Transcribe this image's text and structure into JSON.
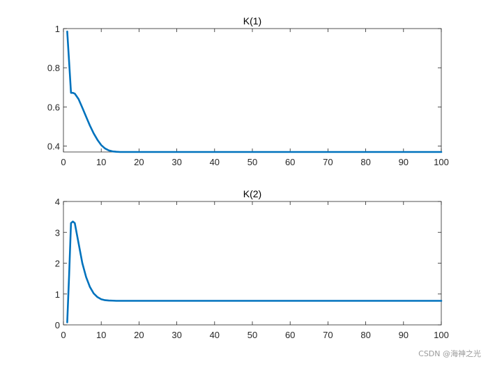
{
  "watermark": "CSDN @海神之光",
  "colors": {
    "line": "#0072bd",
    "axis": "#262626",
    "background": "#ffffff"
  },
  "chart_data": [
    {
      "type": "line",
      "title": "K(1)",
      "xlabel": "",
      "ylabel": "",
      "xlim": [
        0,
        100
      ],
      "ylim": [
        0.37,
        1
      ],
      "xticks": [
        0,
        10,
        20,
        30,
        40,
        50,
        60,
        70,
        80,
        90,
        100
      ],
      "xtick_labels": [
        "0",
        "10",
        "20",
        "30",
        "40",
        "50",
        "60",
        "70",
        "80",
        "90",
        "100"
      ],
      "yticks": [
        0.4,
        0.6,
        0.8,
        1
      ],
      "ytick_labels": [
        "0.4",
        "0.6",
        "0.8",
        "1"
      ],
      "grid": false,
      "series": [
        {
          "x": [
            1,
            1.5,
            2,
            2.5,
            3,
            4,
            5,
            6,
            7,
            8,
            9,
            10,
            11,
            12,
            13,
            14,
            15,
            20,
            30,
            40,
            50,
            60,
            70,
            80,
            90,
            100
          ],
          "y": [
            0.985,
            0.83,
            0.672,
            0.672,
            0.668,
            0.64,
            0.596,
            0.55,
            0.505,
            0.465,
            0.432,
            0.405,
            0.388,
            0.378,
            0.373,
            0.371,
            0.37,
            0.37,
            0.37,
            0.37,
            0.37,
            0.37,
            0.37,
            0.37,
            0.37,
            0.37
          ]
        }
      ]
    },
    {
      "type": "line",
      "title": "K(2)",
      "xlabel": "",
      "ylabel": "",
      "xlim": [
        0,
        100
      ],
      "ylim": [
        0,
        4
      ],
      "xticks": [
        0,
        10,
        20,
        30,
        40,
        50,
        60,
        70,
        80,
        90,
        100
      ],
      "xtick_labels": [
        "0",
        "10",
        "20",
        "30",
        "40",
        "50",
        "60",
        "70",
        "80",
        "90",
        "100"
      ],
      "yticks": [
        0,
        1,
        2,
        3,
        4
      ],
      "ytick_labels": [
        "0",
        "1",
        "2",
        "3",
        "4"
      ],
      "grid": false,
      "series": [
        {
          "x": [
            1,
            1.5,
            2,
            2.5,
            3,
            4,
            5,
            6,
            7,
            8,
            9,
            10,
            11,
            12,
            13,
            14,
            15,
            20,
            30,
            40,
            50,
            60,
            70,
            80,
            90,
            100
          ],
          "y": [
            0.08,
            1.6,
            3.3,
            3.35,
            3.3,
            2.65,
            2.0,
            1.55,
            1.23,
            1.02,
            0.9,
            0.83,
            0.8,
            0.79,
            0.785,
            0.78,
            0.78,
            0.78,
            0.78,
            0.78,
            0.78,
            0.78,
            0.78,
            0.78,
            0.78,
            0.78
          ]
        }
      ]
    }
  ]
}
